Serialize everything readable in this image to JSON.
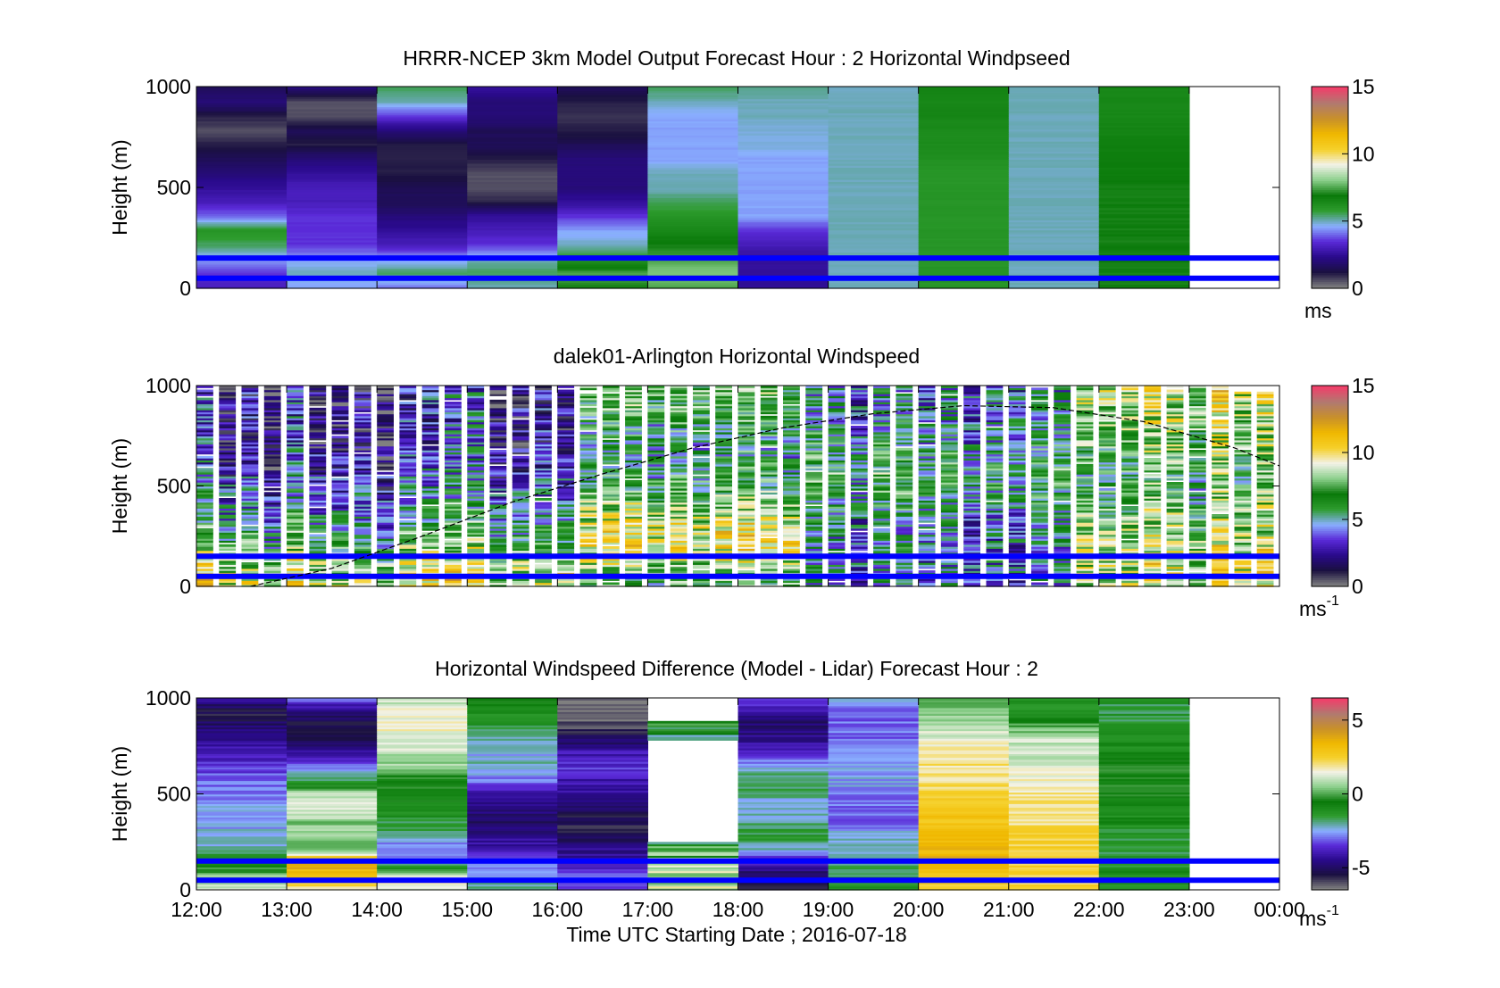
{
  "figure": {
    "xlabel": "Time UTC  Starting Date ; 2016-07-18",
    "x_tick_labels": [
      "12:00",
      "13:00",
      "14:00",
      "15:00",
      "16:00",
      "17:00",
      "18:00",
      "19:00",
      "20:00",
      "21:00",
      "22:00",
      "23:00",
      "00:00"
    ]
  },
  "colors": {
    "colormap": [
      "#808080",
      "#1a1040",
      "#2a0a8c",
      "#5a2ad8",
      "#8ab0ff",
      "#2e9c2e",
      "#0a7a0a",
      "#8ccf8c",
      "#f2f2e8",
      "#f5d02a",
      "#f0b800",
      "#c8902a",
      "#b07a70",
      "#f0406a"
    ],
    "layer_lines": "#0000ff",
    "gap": "#ffffff"
  },
  "chart_data": [
    {
      "type": "heatmap",
      "title": "HRRR-NCEP 3km Model Output   Forecast Hour : 2 Horizontal Windpseed",
      "ylabel": "Height (m)",
      "ylim": [
        0,
        1000
      ],
      "y_ticks": [
        "0",
        "500",
        "1000"
      ],
      "colorbar": {
        "label": "ms",
        "label_sup": "",
        "range": [
          0,
          15
        ],
        "ticks": [
          "0",
          "5",
          "10",
          "15"
        ],
        "tick_values": [
          0,
          5,
          10,
          15
        ]
      },
      "x_range_hours": [
        12,
        24
      ],
      "columns": [
        {
          "start": 12,
          "end": 13,
          "values": [
            3.0,
            3.5,
            4.5,
            5.5,
            6.0,
            4.0,
            3.0,
            2.5,
            2.0,
            1.5,
            1.0,
            0.5,
            1.0,
            2.0,
            1.5
          ]
        },
        {
          "start": 13,
          "end": 14,
          "values": [
            4.5,
            5.0,
            4.5,
            3.5,
            3.5,
            3.5,
            3.0,
            3.0,
            2.5,
            2.0,
            1.0,
            1.5,
            0.5,
            0.5,
            2.0
          ]
        },
        {
          "start": 14,
          "end": 15,
          "values": [
            4.0,
            5.5,
            4.5,
            3.0,
            2.5,
            2.0,
            1.5,
            1.5,
            1.0,
            1.0,
            1.0,
            2.0,
            3.5,
            5.0,
            5.5
          ]
        },
        {
          "start": 15,
          "end": 16,
          "values": [
            5.0,
            5.5,
            5.0,
            3.5,
            3.0,
            2.5,
            1.0,
            0.5,
            0.5,
            1.0,
            1.5,
            1.5,
            2.0,
            2.0,
            2.5
          ]
        },
        {
          "start": 16,
          "end": 17,
          "values": [
            7.0,
            7.5,
            6.0,
            5.0,
            4.5,
            3.5,
            2.5,
            2.0,
            2.0,
            2.0,
            1.5,
            1.0,
            0.8,
            1.0,
            1.5
          ]
        },
        {
          "start": 17,
          "end": 18,
          "values": [
            7.5,
            8.0,
            7.5,
            7.0,
            6.5,
            6.0,
            5.5,
            5.0,
            5.0,
            4.5,
            4.5,
            4.5,
            4.5,
            5.0,
            5.5
          ]
        },
        {
          "start": 18,
          "end": 19,
          "values": [
            2.5,
            2.5,
            2.5,
            3.0,
            3.5,
            4.5,
            4.5,
            4.5,
            4.5,
            4.5,
            4.8,
            4.8,
            5.0,
            5.0,
            5.2
          ]
        },
        {
          "start": 19,
          "end": 20,
          "values": [
            5.0,
            5.0,
            5.0,
            5.0,
            5.0,
            5.0,
            5.0,
            5.0,
            5.0,
            5.0,
            5.0,
            5.0,
            5.0,
            5.0,
            5.0
          ]
        },
        {
          "start": 20,
          "end": 21,
          "values": [
            6.0,
            6.0,
            6.0,
            6.0,
            6.0,
            6.0,
            6.0,
            6.0,
            6.0,
            6.2,
            6.3,
            6.4,
            6.5,
            6.5,
            6.6
          ]
        },
        {
          "start": 21,
          "end": 22,
          "values": [
            5.0,
            5.0,
            5.0,
            5.0,
            5.0,
            5.0,
            5.0,
            5.0,
            5.0,
            5.0,
            5.0,
            5.0,
            5.0,
            5.0,
            5.0
          ]
        },
        {
          "start": 22,
          "end": 23,
          "values": [
            7.0,
            7.0,
            7.0,
            7.0,
            7.0,
            7.0,
            7.0,
            7.0,
            6.8,
            6.8,
            6.7,
            6.6,
            6.5,
            6.5,
            6.5
          ]
        }
      ],
      "layer_lines_m": [
        50,
        150
      ]
    },
    {
      "type": "heatmap",
      "title": "dalek01-Arlington  Horizontal Windspeed",
      "ylabel": "Height (m)",
      "ylim": [
        0,
        1000
      ],
      "y_ticks": [
        "0",
        "500",
        "1000"
      ],
      "colorbar": {
        "label": "ms",
        "label_sup": "-1",
        "range": [
          0,
          15
        ],
        "ticks": [
          "0",
          "5",
          "10",
          "15"
        ],
        "tick_values": [
          0,
          5,
          10,
          15
        ]
      },
      "x_range_hours": [
        12,
        24
      ],
      "column_width_hours": 0.25,
      "columns_start": 12,
      "columns_end": 24,
      "profile": {
        "morning_low": [
          9.5,
          9.0,
          8.0,
          7.0,
          6.0,
          5.0,
          4.5,
          4.0,
          3.5,
          3.0,
          2.5,
          2.5,
          2.5,
          2.5,
          2.5
        ],
        "midday": [
          6.0,
          7.0,
          8.5,
          9.5,
          9.0,
          8.0,
          7.0,
          6.0,
          5.5,
          5.0,
          5.0,
          5.5,
          6.0,
          6.5,
          7.0
        ],
        "afternoon": [
          5.0,
          5.0,
          5.0,
          5.0,
          5.0,
          5.5,
          6.0,
          6.5,
          7.0,
          6.5,
          6.0,
          5.5,
          5.0,
          5.0,
          5.0
        ],
        "evening": [
          9.0,
          9.5,
          9.5,
          9.0,
          8.5,
          8.0,
          7.5,
          7.0,
          7.0,
          7.5,
          8.0,
          8.5,
          9.0,
          9.0,
          9.5
        ]
      },
      "boundary_layer_curve": {
        "hours": [
          12.6,
          13.5,
          14.5,
          15.5,
          16.5,
          17.5,
          18.5,
          19.5,
          20.5,
          21.5,
          22.5,
          23.5,
          24.0
        ],
        "height_m": [
          0,
          90,
          250,
          420,
          560,
          690,
          790,
          860,
          900,
          890,
          820,
          690,
          600
        ]
      },
      "layer_lines_m": [
        50,
        150
      ]
    },
    {
      "type": "heatmap",
      "title": "Horizontal Windspeed Difference (Model - Lidar) Forecast Hour : 2",
      "ylabel": "Height (m)",
      "ylim": [
        0,
        1000
      ],
      "y_ticks": [
        "0",
        "500",
        "1000"
      ],
      "colorbar": {
        "label": "ms",
        "label_sup": "-1",
        "range": [
          -6.5,
          6.5
        ],
        "ticks": [
          "-5",
          "0",
          "5"
        ],
        "tick_values": [
          -5,
          0,
          5
        ]
      },
      "x_range_hours": [
        12,
        24
      ],
      "columns": [
        {
          "start": 12,
          "end": 13,
          "values": [
            1.0,
            0.5,
            -1.0,
            -2.0,
            -2.5,
            -2.5,
            -2.5,
            -3.0,
            -3.0,
            -3.5,
            -4.0,
            -4.5,
            -5.0,
            -5.5,
            -4.5
          ]
        },
        {
          "start": 13,
          "end": 14,
          "values": [
            2.0,
            3.0,
            4.0,
            0.0,
            0.5,
            0.5,
            1.5,
            1.0,
            -1.5,
            -3.0,
            -4.0,
            -5.0,
            -5.5,
            -5.0,
            -3.0
          ]
        },
        {
          "start": 14,
          "end": 15,
          "values": [
            1.5,
            1.5,
            -2.5,
            -3.0,
            -2.0,
            -1.5,
            -1.0,
            -0.5,
            -0.5,
            0.5,
            1.0,
            1.5,
            1.5,
            1.5,
            1.0
          ]
        },
        {
          "start": 15,
          "end": 16,
          "values": [
            -2.0,
            -2.5,
            -3.0,
            -4.0,
            -4.5,
            -5.0,
            -4.5,
            -4.0,
            -3.0,
            -2.0,
            -2.5,
            -2.0,
            -1.5,
            -1.0,
            -0.5
          ]
        },
        {
          "start": 16,
          "end": 17,
          "values": [
            -3.5,
            -3.0,
            -4.0,
            -4.5,
            -5.5,
            -5.5,
            -5.0,
            -4.5,
            -4.0,
            -3.5,
            -4.0,
            -5.0,
            -6.0,
            -6.5,
            -6.0
          ]
        },
        {
          "start": 18,
          "end": 19,
          "values": [
            -5.5,
            -5.0,
            -4.0,
            -2.0,
            -1.5,
            -2.0,
            -2.5,
            -2.0,
            -1.5,
            -2.5,
            -3.5,
            -4.5,
            -5.0,
            -4.5,
            -3.0
          ]
        },
        {
          "start": 19,
          "end": 20,
          "values": [
            -1.0,
            -1.5,
            -2.0,
            -2.0,
            -2.5,
            -3.0,
            -3.0,
            -3.0,
            -2.5,
            -2.5,
            -3.0,
            -3.0,
            -3.0,
            -3.0,
            -2.5
          ]
        },
        {
          "start": 20,
          "end": 21,
          "values": [
            2.5,
            3.0,
            3.5,
            3.5,
            3.5,
            3.0,
            3.0,
            2.5,
            2.0,
            2.0,
            2.0,
            1.5,
            1.0,
            0.5,
            0.0
          ]
        },
        {
          "start": 21,
          "end": 22,
          "values": [
            2.5,
            2.5,
            2.5,
            2.5,
            2.5,
            2.0,
            2.0,
            2.0,
            1.5,
            1.5,
            1.0,
            1.0,
            0.0,
            -1.0,
            -1.5
          ]
        },
        {
          "start": 22,
          "end": 23,
          "values": [
            -1.0,
            -1.0,
            -1.5,
            -1.5,
            -1.5,
            -1.0,
            -1.0,
            -0.5,
            -0.5,
            -0.5,
            -1.0,
            -1.0,
            -1.5,
            -1.5,
            -1.5
          ]
        }
      ],
      "sparse_column": {
        "start": 17,
        "end": 18,
        "values": [
          1.0,
          0.5,
          -1.0
        ]
      },
      "layer_lines_m": [
        50,
        150
      ]
    }
  ]
}
